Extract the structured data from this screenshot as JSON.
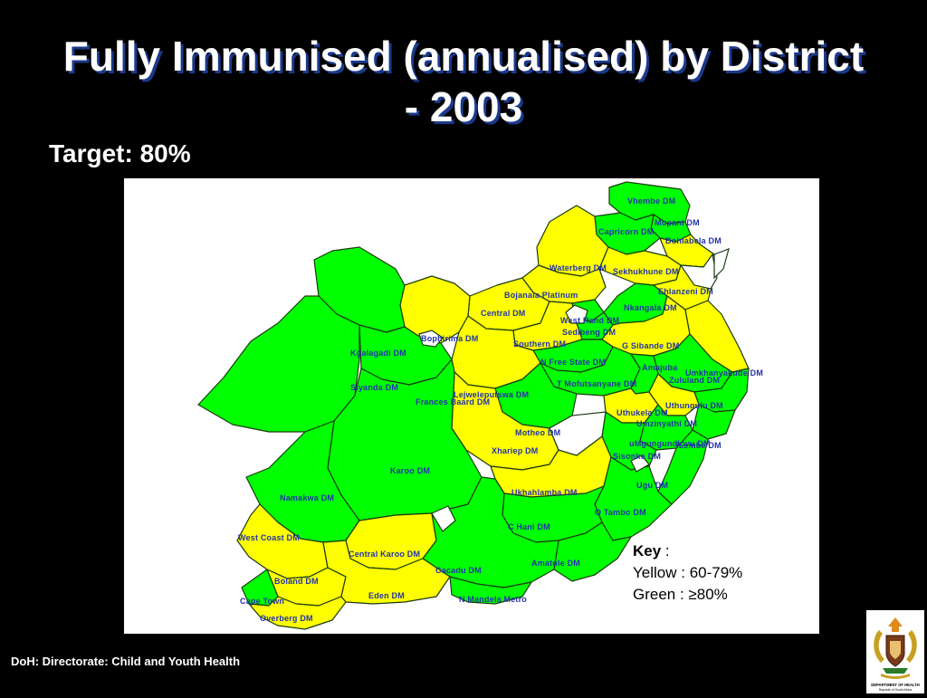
{
  "slide": {
    "title": "Fully Immunised (annualised) by District - 2003",
    "target": "Target: 80%",
    "footer": "DoH: Directorate: Child and Youth Health"
  },
  "key": {
    "heading": "Key",
    "sep": " :",
    "yellow": "Yellow : 60-79%",
    "green": "Green : ≥80%"
  },
  "colors": {
    "yellow": "#FFFF00",
    "green": "#00FF00",
    "outline": "#1a3a10",
    "label": "#2233aa"
  },
  "logo": {
    "caption": "DEPARTMENT OF HEALTH",
    "sub": "Republic of South Africa"
  },
  "districts": [
    {
      "name": "Vhembe DM",
      "band": "green"
    },
    {
      "name": "Mopani DM",
      "band": "green"
    },
    {
      "name": "Capricorn DM",
      "band": "green"
    },
    {
      "name": "Bohlabela DM",
      "band": "yellow"
    },
    {
      "name": "Waterberg DM",
      "band": "yellow"
    },
    {
      "name": "Sekhukhune DM",
      "band": "yellow"
    },
    {
      "name": "Bojanala Platinum",
      "band": "yellow"
    },
    {
      "name": "Central DM",
      "band": "yellow"
    },
    {
      "name": "West Rand DM",
      "band": "green"
    },
    {
      "name": "Sedibeng DM",
      "band": "green"
    },
    {
      "name": "Nkangala DM",
      "band": "green"
    },
    {
      "name": "Ehlanzeni DM",
      "band": "yellow"
    },
    {
      "name": "Bophirima DM",
      "band": "yellow"
    },
    {
      "name": "Southern DM",
      "band": "yellow"
    },
    {
      "name": "G Sibande DM",
      "band": "yellow"
    },
    {
      "name": "Kgalagadi DM",
      "band": "green"
    },
    {
      "name": "N Free State DM",
      "band": "green"
    },
    {
      "name": "Umkhanyakude DM",
      "band": "yellow"
    },
    {
      "name": "Siyanda DM",
      "band": "green"
    },
    {
      "name": "Frances Baard DM",
      "band": "green"
    },
    {
      "name": "Lejweleputswa DM",
      "band": "yellow"
    },
    {
      "name": "T Mofutsanyane DM",
      "band": "green"
    },
    {
      "name": "Zululand DM",
      "band": "green"
    },
    {
      "name": "Amajuba",
      "band": "green"
    },
    {
      "name": "Uthungulu DM",
      "band": "green"
    },
    {
      "name": "Uthukela DM",
      "band": "yellow"
    },
    {
      "name": "Umzinyathi DM",
      "band": "yellow"
    },
    {
      "name": "iLembe DM",
      "band": "green"
    },
    {
      "name": "Motheo DM",
      "band": "green"
    },
    {
      "name": "uMgungundlovu DM",
      "band": "green"
    },
    {
      "name": "Sisonke DM",
      "band": "green"
    },
    {
      "name": "Xhariep DM",
      "band": "yellow"
    },
    {
      "name": "Karoo DM",
      "band": "green"
    },
    {
      "name": "Ugu DM",
      "band": "green"
    },
    {
      "name": "Ukhahlamba DM",
      "band": "yellow"
    },
    {
      "name": "Namakwa DM",
      "band": "green"
    },
    {
      "name": "O Tambo DM",
      "band": "green"
    },
    {
      "name": "C Hani DM",
      "band": "green"
    },
    {
      "name": "West Coast DM",
      "band": "yellow"
    },
    {
      "name": "Central Karoo DM",
      "band": "yellow"
    },
    {
      "name": "Amatole DM",
      "band": "green"
    },
    {
      "name": "Cacadu DM",
      "band": "green"
    },
    {
      "name": "Boland DM",
      "band": "yellow"
    },
    {
      "name": "Eden DM",
      "band": "yellow"
    },
    {
      "name": "Cape Town",
      "band": "green"
    },
    {
      "name": "N Mandela Metro",
      "band": "green"
    },
    {
      "name": "Overberg DM",
      "band": "yellow"
    }
  ]
}
